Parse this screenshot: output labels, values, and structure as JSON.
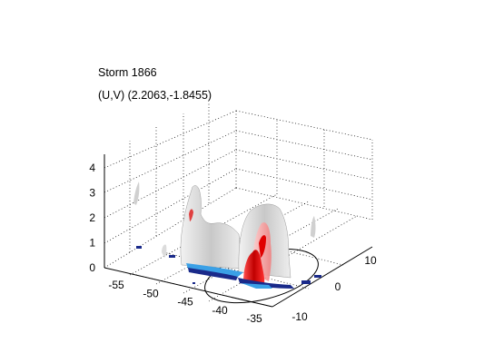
{
  "title": "Storm 1866",
  "subtitle": "(U,V) (2.2063,-1.8455)",
  "chart_data": {
    "type": "surface3d",
    "title": "Storm 1866",
    "subtitle": "(U,V) (2.2063,-1.8455)",
    "x_ticks": [
      -55,
      -50,
      -45,
      -40,
      -35
    ],
    "y_ticks": [
      -10,
      0,
      10
    ],
    "z_ticks": [
      0,
      1,
      2,
      3,
      4
    ],
    "xlim": [
      -57,
      -33
    ],
    "ylim": [
      -12,
      12
    ],
    "zlim": [
      0,
      4.3
    ],
    "grid": true,
    "isosurface_colors": [
      "#d9d9d9",
      "#ff9a9a",
      "#e00000",
      "#1a2a8a",
      "#3aa0e6"
    ],
    "ground_ellipse_color": "#000000"
  }
}
